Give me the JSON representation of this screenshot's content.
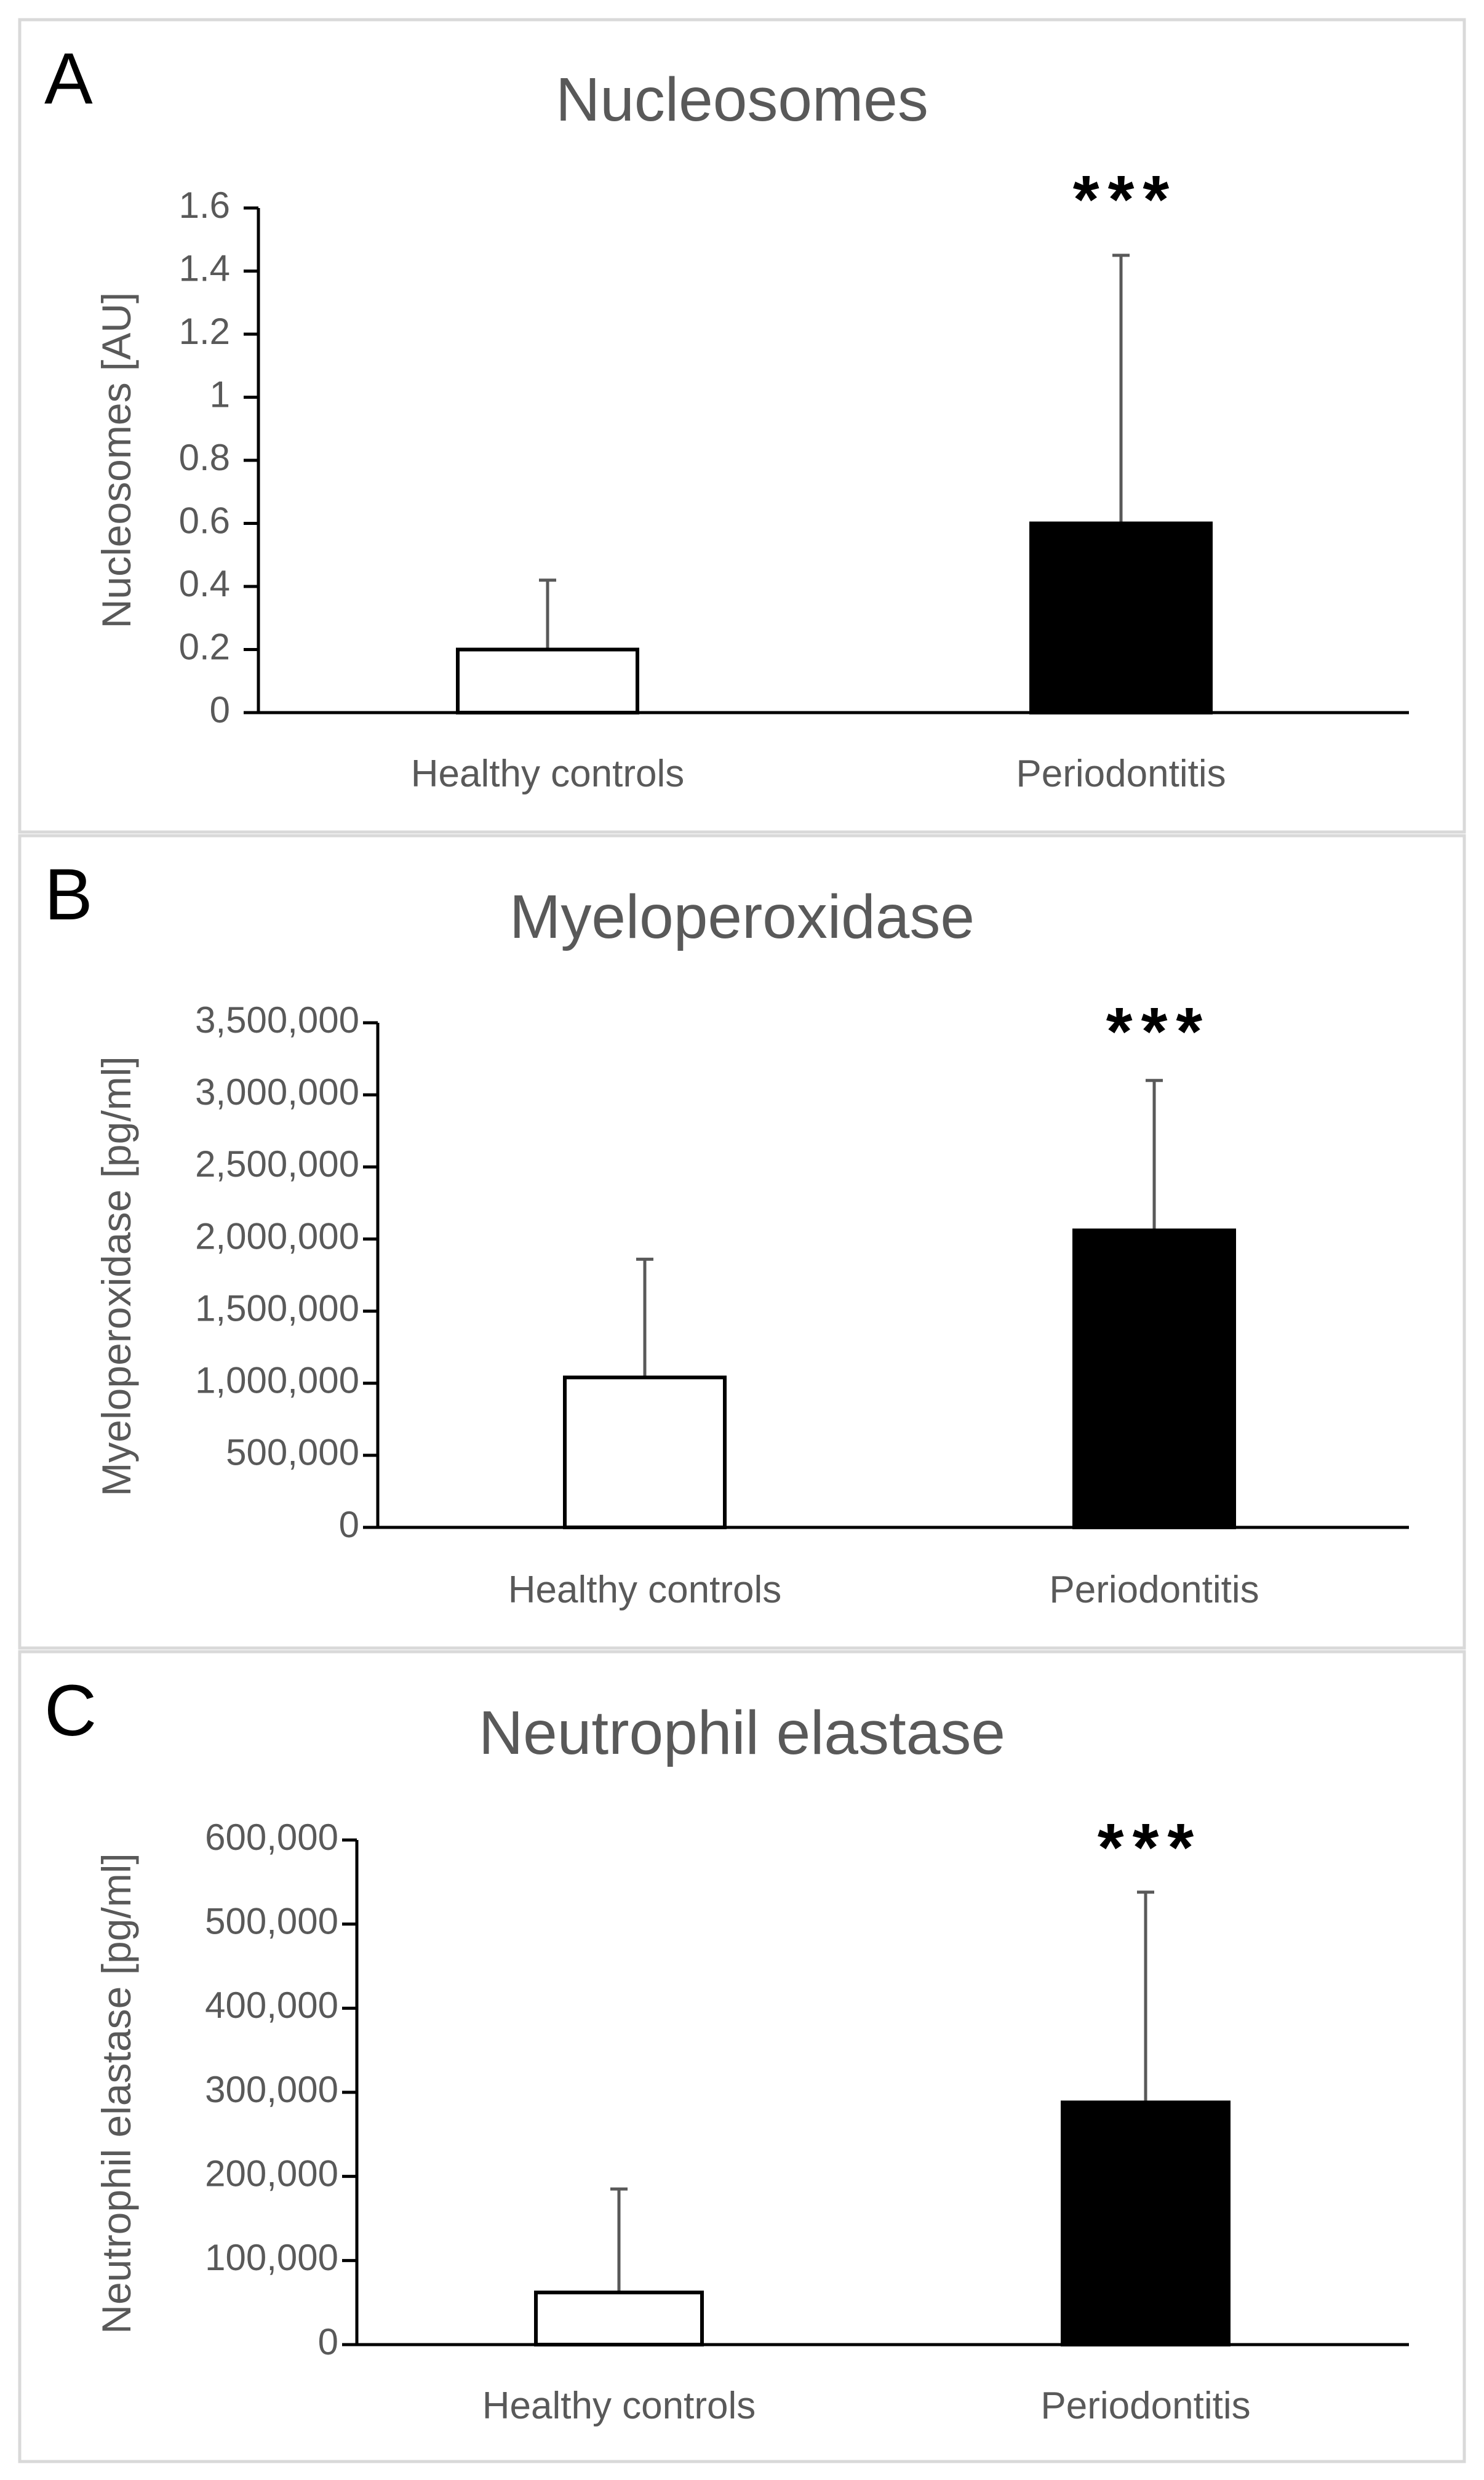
{
  "chart_data": [
    {
      "type": "bar",
      "panel": "A",
      "title": "Nucleosomes",
      "xlabel": "",
      "ylabel": "Nucleosomes [AU]",
      "categories": [
        "Healthy controls",
        "Periodontitis"
      ],
      "values": [
        0.2,
        0.6
      ],
      "error_upper": [
        0.22,
        0.85
      ],
      "bar_fills": [
        "#ffffff",
        "#000000"
      ],
      "ylim": [
        0,
        1.6
      ],
      "yticks": [
        0,
        0.2,
        0.4,
        0.6,
        0.8,
        1,
        1.2,
        1.4,
        1.6
      ],
      "ytick_labels": [
        "0",
        "0.2",
        "0.4",
        "0.6",
        "0.8",
        "1",
        "1.2",
        "1.4",
        "1.6"
      ],
      "annotations": [
        {
          "category": "Periodontitis",
          "text": "***"
        }
      ],
      "grid": false,
      "legend": "none"
    },
    {
      "type": "bar",
      "panel": "B",
      "title": "Myeloperoxidase",
      "xlabel": "",
      "ylabel": "Myeloperoxidase [pg/ml]",
      "categories": [
        "Healthy controls",
        "Periodontitis"
      ],
      "values": [
        1040000,
        2060000
      ],
      "error_upper": [
        820000,
        1040000
      ],
      "bar_fills": [
        "#ffffff",
        "#000000"
      ],
      "ylim": [
        0,
        3500000
      ],
      "yticks": [
        0,
        500000,
        1000000,
        1500000,
        2000000,
        2500000,
        3000000,
        3500000
      ],
      "ytick_labels": [
        "0",
        "500,000",
        "1,000,000",
        "1,500,000",
        "2,000,000",
        "2,500,000",
        "3,000,000",
        "3,500,000"
      ],
      "annotations": [
        {
          "category": "Periodontitis",
          "text": "***"
        }
      ],
      "grid": false,
      "legend": "none"
    },
    {
      "type": "bar",
      "panel": "C",
      "title": "Neutrophil elastase",
      "xlabel": "",
      "ylabel": "Neutrophil elastase [pg/ml]",
      "categories": [
        "Healthy controls",
        "Periodontitis"
      ],
      "values": [
        62000,
        288000
      ],
      "error_upper": [
        123000,
        250000
      ],
      "bar_fills": [
        "#ffffff",
        "#000000"
      ],
      "ylim": [
        0,
        600000
      ],
      "yticks": [
        0,
        100000,
        200000,
        300000,
        400000,
        500000,
        600000
      ],
      "ytick_labels": [
        "0",
        "100,000",
        "200,000",
        "300,000",
        "400,000",
        "500,000",
        "600,000"
      ],
      "annotations": [
        {
          "category": "Periodontitis",
          "text": "***"
        }
      ],
      "grid": false,
      "legend": "none"
    }
  ]
}
